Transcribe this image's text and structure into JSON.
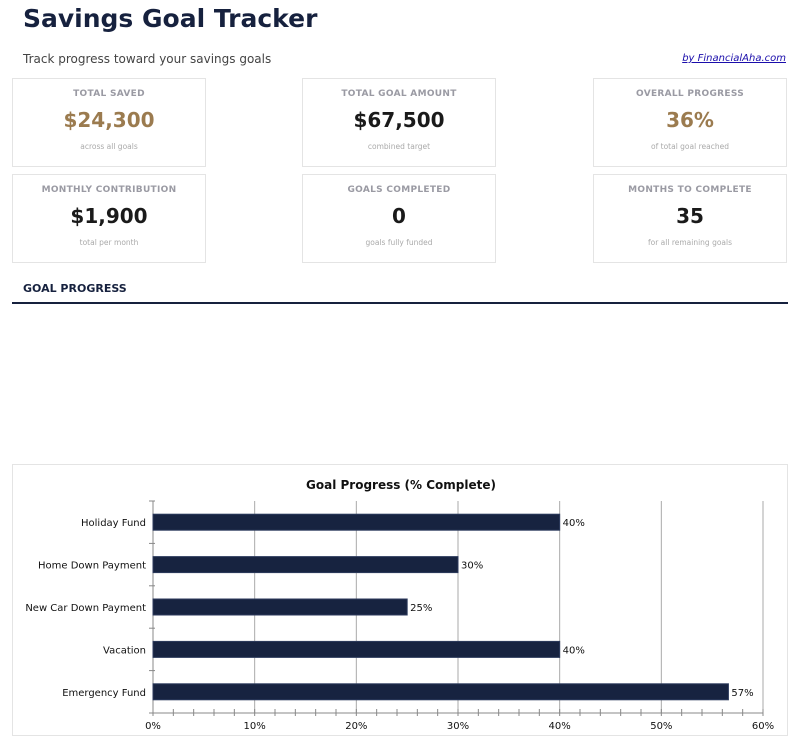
{
  "header": {
    "title": "Savings Goal Tracker",
    "subtitle": "Track progress toward your savings goals",
    "credit": "by FinancialAha.com"
  },
  "cards": [
    {
      "label": "TOTAL SAVED",
      "value": "$24,300",
      "note": "across all goals",
      "accent": true
    },
    {
      "label": "TOTAL GOAL AMOUNT",
      "value": "$67,500",
      "note": "combined target",
      "accent": false
    },
    {
      "label": "OVERALL PROGRESS",
      "value": "36%",
      "note": "of total goal reached",
      "accent": true
    },
    {
      "label": "MONTHLY CONTRIBUTION",
      "value": "$1,900",
      "note": "total per month",
      "accent": false
    },
    {
      "label": "GOALS COMPLETED",
      "value": "0",
      "note": "goals fully funded",
      "accent": false
    },
    {
      "label": "MONTHS TO COMPLETE",
      "value": "35",
      "note": "for all remaining goals",
      "accent": false
    }
  ],
  "section": {
    "title": "GOAL PROGRESS"
  },
  "colors": {
    "navy": "#16213e",
    "accent": "#9b7b4f",
    "bar": "#172340"
  },
  "chart_data": {
    "type": "bar",
    "orientation": "horizontal",
    "title": "Goal Progress (% Complete)",
    "categories": [
      "Holiday Fund",
      "Home Down Payment",
      "New Car Down Payment",
      "Vacation",
      "Emergency Fund"
    ],
    "values": [
      40,
      30,
      25,
      40,
      56.6
    ],
    "data_labels": [
      "40%",
      "30%",
      "25%",
      "40%",
      "57%"
    ],
    "xlim": [
      0,
      60
    ],
    "x_ticks": [
      "0%",
      "10%",
      "20%",
      "30%",
      "40%",
      "50%",
      "60%"
    ],
    "grid": true,
    "legend": "none"
  }
}
